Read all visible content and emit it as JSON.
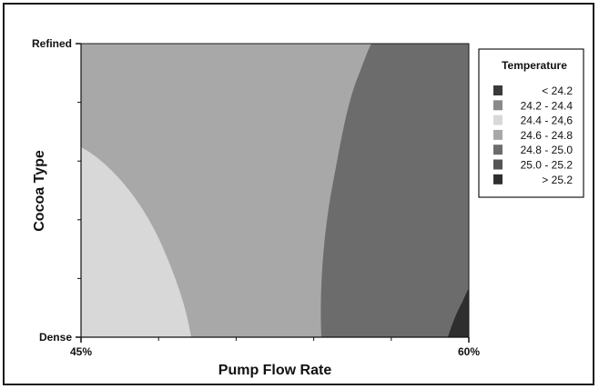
{
  "chart_data": {
    "type": "contour",
    "xlabel": "Pump Flow Rate",
    "ylabel": "Cocoa Type",
    "x_ticks": [
      "45%",
      "60%"
    ],
    "y_ticks": [
      "Dense",
      "Refined"
    ],
    "xlim": [
      45,
      60
    ],
    "y_categories": [
      "Dense",
      "Refined"
    ],
    "legend": {
      "title": "Temperature",
      "placement": "right",
      "items": [
        {
          "label": "< 24.2",
          "color": "#3a3a3a"
        },
        {
          "label": "24.2 - 24.4",
          "color": "#8a8a8a"
        },
        {
          "label": "24.4 - 24,6",
          "color": "#d8d8d8"
        },
        {
          "label": "24.6 - 24.8",
          "color": "#a8a8a8"
        },
        {
          "label": "24.8 - 25.0",
          "color": "#6c6c6c"
        },
        {
          "label": "25.0 - 25.2",
          "color": "#555555"
        },
        {
          "label": "> 25.2",
          "color": "#2e2e2e"
        }
      ]
    },
    "regions": [
      {
        "range": "24.6 - 24.8",
        "color": "#a8a8a8"
      },
      {
        "range": "24.4 - 24,6",
        "color": "#d8d8d8"
      },
      {
        "range": "24.8 - 25.0",
        "color": "#6c6c6c"
      },
      {
        "range": "> 25.2",
        "color": "#2e2e2e"
      }
    ],
    "grid": false
  }
}
